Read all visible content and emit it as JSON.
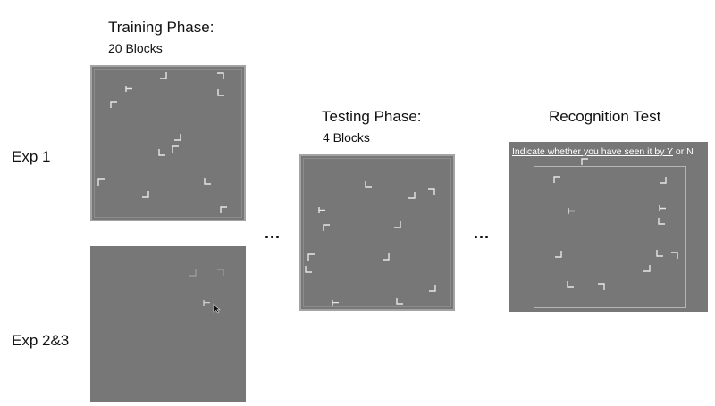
{
  "training": {
    "title": "Training Phase:",
    "subtitle": "20 Blocks"
  },
  "testing": {
    "title": "Testing Phase:",
    "subtitle": "4 Blocks"
  },
  "recognition": {
    "title": "Recognition Test",
    "instruction_underlined": "Indicate whether you have seen it by Y",
    "instruction_rest": " or N"
  },
  "experiments": {
    "exp1": "Exp 1",
    "exp23": "Exp 2&3"
  },
  "ellipsis": "...",
  "colors": {
    "panel": "#777777",
    "panel_border": "#a4a4a4",
    "stimulus": "#e6e6e6",
    "page": "#ffffff"
  }
}
